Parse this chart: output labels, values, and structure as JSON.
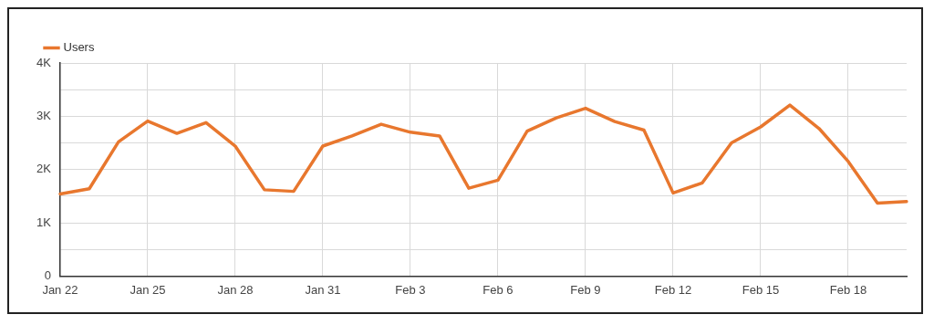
{
  "chart_data": {
    "type": "line",
    "categories": [
      "Jan 22",
      null,
      null,
      "Jan 25",
      null,
      null,
      "Jan 28",
      null,
      null,
      "Jan 31",
      null,
      null,
      "Feb 3",
      null,
      null,
      "Feb 6",
      null,
      null,
      "Feb 9",
      null,
      null,
      "Feb 12",
      null,
      null,
      "Feb 15",
      null,
      null,
      "Feb 18",
      null,
      null
    ],
    "series": [
      {
        "name": "Users",
        "color": "#e8772e",
        "values": [
          1540,
          1640,
          2520,
          2910,
          2680,
          2880,
          2440,
          1620,
          1590,
          2440,
          2630,
          2850,
          2700,
          2630,
          1650,
          1800,
          2720,
          2970,
          3150,
          2900,
          2740,
          1560,
          1750,
          2500,
          2800,
          3210,
          2770,
          2150,
          1370,
          1400
        ]
      }
    ],
    "ylim": [
      0,
      4000
    ],
    "yticks": [
      {
        "value": 0,
        "label": "0"
      },
      {
        "value": 500,
        "label": null
      },
      {
        "value": 1000,
        "label": "1K"
      },
      {
        "value": 1500,
        "label": null
      },
      {
        "value": 2000,
        "label": "2K"
      },
      {
        "value": 2500,
        "label": null
      },
      {
        "value": 3000,
        "label": "3K"
      },
      {
        "value": 3500,
        "label": null
      },
      {
        "value": 4000,
        "label": "4K"
      }
    ],
    "grid": true,
    "legend": "top left",
    "marker": "none",
    "line_style": "solid"
  }
}
